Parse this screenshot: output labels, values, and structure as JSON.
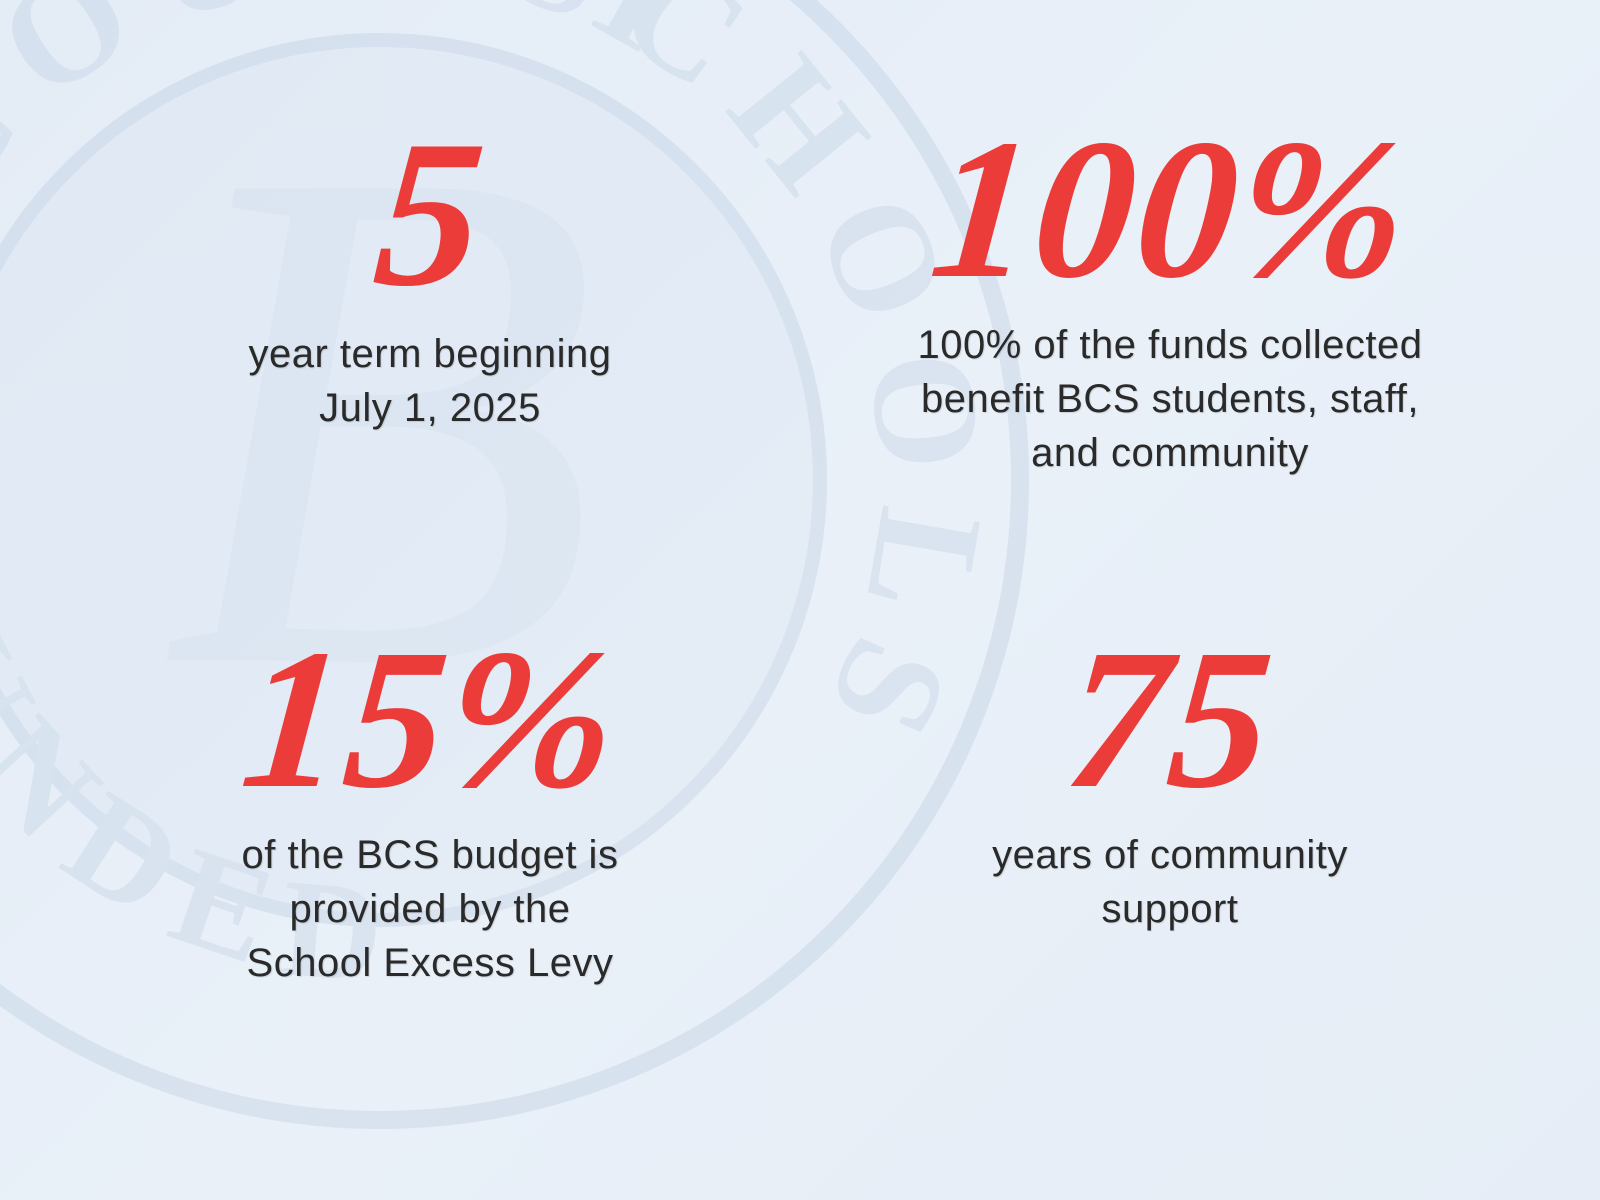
{
  "background_color": "#e7eef7",
  "seal": {
    "ring_color": "#9fb6d4",
    "inner_color": "#b7c9df",
    "text_color": "#a8bdd8",
    "top_text": "COUNTY",
    "right_text": "SCHOOLS",
    "bottom_text": "OUNDED",
    "center_letter": "B"
  },
  "stats": [
    {
      "value": "5",
      "caption": "year term beginning\nJuly 1, 2025",
      "value_color": "#eb3c3a",
      "value_fontsize": 210,
      "caption_fontsize": 40
    },
    {
      "value": "100%",
      "caption": "100% of the funds collected\nbenefit BCS students, staff,\nand community",
      "value_color": "#eb3c3a",
      "value_fontsize": 200,
      "caption_fontsize": 40
    },
    {
      "value": "15%",
      "caption": "of the BCS budget is\nprovided by the\nSchool Excess Levy",
      "value_color": "#eb3c3a",
      "value_fontsize": 200,
      "caption_fontsize": 40
    },
    {
      "value": "75",
      "caption": "years of community\nsupport",
      "value_color": "#eb3c3a",
      "value_fontsize": 200,
      "caption_fontsize": 40
    }
  ]
}
